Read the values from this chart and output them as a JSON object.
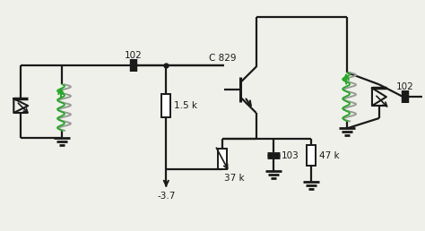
{
  "bg_color": "#f0f0eb",
  "line_color": "#1a1a1a",
  "green_color": "#22aa22",
  "gray_color": "#999999",
  "labels": {
    "cap_left": "102",
    "transistor": "C 829",
    "res_15k": "1.5 k",
    "res_37k": "37 k",
    "res_47k": "47 k",
    "cap_103": "103",
    "cap_right": "102",
    "voltage": "-3.7"
  },
  "figsize": [
    4.74,
    2.58
  ],
  "dpi": 100
}
